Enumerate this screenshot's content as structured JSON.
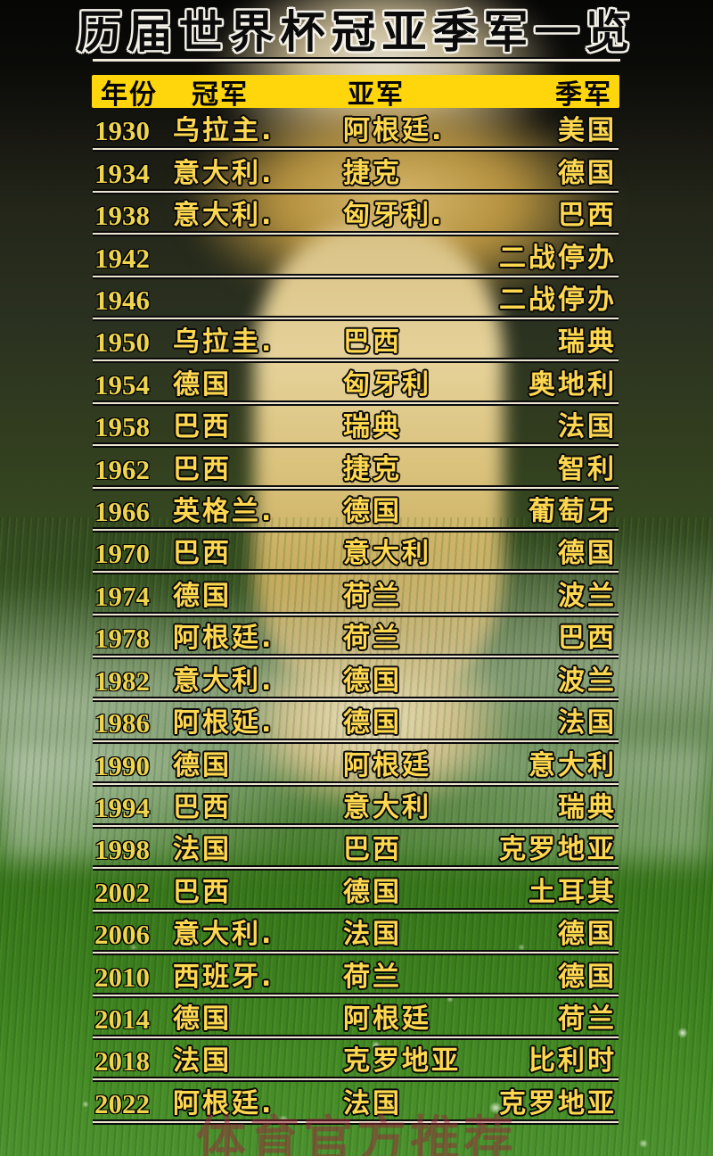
{
  "title": "历届世界杯冠亚季军一览",
  "watermark": "体育官方推荐",
  "colors": {
    "header_bar_yellow": "#ffd60b",
    "row_text_gold": "#ffd84f",
    "year_gold": "#efd44e",
    "row_line_cream": "#ece5d2",
    "title_outline_white": "#f4f1e8",
    "watermark_red": "#942a3a"
  },
  "table": {
    "headers": {
      "year": "年份",
      "champion": "冠军",
      "runner_up": "亚军",
      "third": "季军"
    },
    "rows": [
      {
        "year": "1930",
        "champion": "乌拉主.",
        "runner_up": "阿根廷.",
        "third": "美国"
      },
      {
        "year": "1934",
        "champion": "意大利.",
        "runner_up": "捷克",
        "third": "德国"
      },
      {
        "year": "1938",
        "champion": "意大利.",
        "runner_up": "匈牙利.",
        "third": "巴西"
      },
      {
        "year": "1942",
        "champion": "",
        "runner_up": "",
        "third": "二战停办"
      },
      {
        "year": "1946",
        "champion": "",
        "runner_up": "",
        "third": "二战停办"
      },
      {
        "year": "1950",
        "champion": "乌拉圭.",
        "runner_up": "巴西",
        "third": "瑞典"
      },
      {
        "year": "1954",
        "champion": "德国",
        "runner_up": "匈牙利",
        "third": "奥地利"
      },
      {
        "year": "1958",
        "champion": "巴西",
        "runner_up": "瑞典",
        "third": "法国"
      },
      {
        "year": "1962",
        "champion": "巴西",
        "runner_up": "捷克",
        "third": "智利"
      },
      {
        "year": "1966",
        "champion": "英格兰.",
        "runner_up": "德国",
        "third": "葡萄牙"
      },
      {
        "year": "1970",
        "champion": "巴西",
        "runner_up": "意大利",
        "third": "德国"
      },
      {
        "year": "1974",
        "champion": "德国",
        "runner_up": "荷兰",
        "third": "波兰"
      },
      {
        "year": "1978",
        "champion": "阿根廷.",
        "runner_up": "荷兰",
        "third": "巴西"
      },
      {
        "year": "1982",
        "champion": "意大利.",
        "runner_up": "德国",
        "third": "波兰"
      },
      {
        "year": "1986",
        "champion": "阿根延.",
        "runner_up": "德国",
        "third": "法国"
      },
      {
        "year": "1990",
        "champion": "德国",
        "runner_up": "阿根廷",
        "third": "意大利"
      },
      {
        "year": "1994",
        "champion": "巴西",
        "runner_up": "意大利",
        "third": "瑞典"
      },
      {
        "year": "1998",
        "champion": "法国",
        "runner_up": "巴西",
        "third": "克罗地亚"
      },
      {
        "year": "2002",
        "champion": "巴西",
        "runner_up": "德国",
        "third": "土耳其"
      },
      {
        "year": "2006",
        "champion": "意大利.",
        "runner_up": "法国",
        "third": "德国"
      },
      {
        "year": "2010",
        "champion": "西班牙.",
        "runner_up": "荷兰",
        "third": "德国"
      },
      {
        "year": "2014",
        "champion": "德国",
        "runner_up": "阿根廷",
        "third": "荷兰"
      },
      {
        "year": "2018",
        "champion": "法国",
        "runner_up": "克罗地亚",
        "third": "比利时"
      },
      {
        "year": "2022",
        "champion": "阿根廷.",
        "runner_up": "法国",
        "third": "克罗地亚"
      }
    ]
  }
}
